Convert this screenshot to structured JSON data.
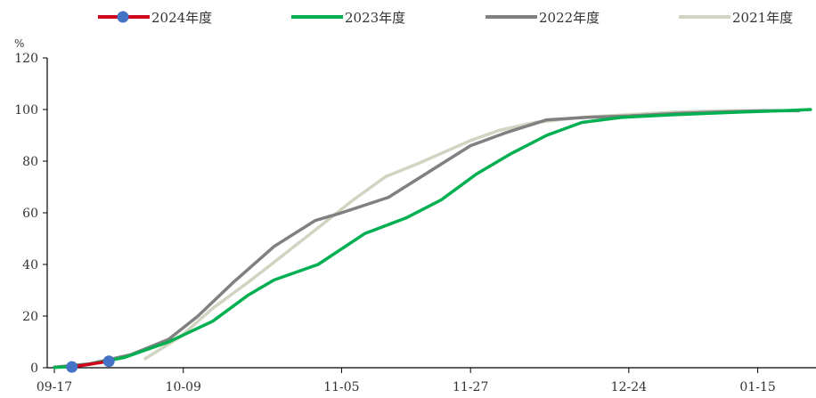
{
  "chart_data": {
    "type": "line",
    "unit": "%",
    "ylim": [
      0,
      120
    ],
    "yticks": [
      0,
      20,
      40,
      60,
      80,
      100,
      120
    ],
    "x_tick_labels": [
      "09-17",
      "10-09",
      "11-05",
      "11-27",
      "12-24",
      "01-15"
    ],
    "x_tick_days": [
      0,
      22,
      49,
      71,
      98,
      120
    ],
    "xlim_days": [
      0,
      129
    ],
    "grid": false,
    "legend_position": "top",
    "series": [
      {
        "name": "2024年度",
        "color": "#d0021b",
        "marker_color": "#4472c4",
        "markers": true,
        "x": [
          3,
          9.3
        ],
        "y": [
          0.3,
          2.5
        ]
      },
      {
        "name": "2023年度",
        "color": "#00b050",
        "markers": false,
        "x": [
          0,
          3,
          6,
          12,
          19.5,
          27,
          33,
          37.5,
          45,
          53,
          60,
          66,
          72,
          78,
          84,
          90,
          97,
          106,
          117,
          124,
          129
        ],
        "y": [
          0.1,
          0.5,
          1.3,
          4,
          10,
          18,
          28,
          34,
          40,
          52,
          58,
          65,
          75,
          83,
          90,
          95,
          97,
          98,
          99,
          99.5,
          100
        ]
      },
      {
        "name": "2022年度",
        "color": "#808080",
        "markers": false,
        "x": [
          0,
          6,
          13,
          19.5,
          24.5,
          30.5,
          37.5,
          44.5,
          49,
          57,
          64,
          71,
          77,
          84,
          91,
          98,
          106,
          113,
          121,
          127
        ],
        "y": [
          0.2,
          1.5,
          5,
          11,
          20,
          33,
          47,
          57,
          60,
          66,
          76,
          86,
          91,
          96,
          97,
          97.5,
          98.5,
          99,
          99.5,
          99.5
        ]
      },
      {
        "name": "2021年度",
        "color": "#d0d4c0",
        "markers": false,
        "x": [
          15.5,
          21.5,
          27,
          33,
          37,
          41.5,
          46,
          51,
          56.5,
          62,
          67,
          71,
          76,
          82,
          90,
          98,
          106,
          114,
          121,
          125
        ],
        "y": [
          3.5,
          12,
          23,
          33,
          40,
          48,
          56,
          65,
          74,
          79,
          84,
          88,
          92,
          95,
          97,
          98,
          99,
          99.5,
          99.5,
          99.5
        ]
      }
    ]
  }
}
